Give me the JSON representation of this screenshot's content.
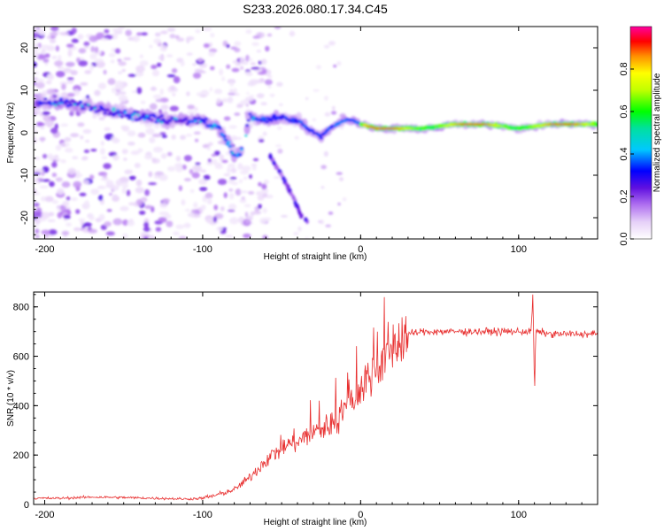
{
  "title": "S233.2026.080.17.34.C45",
  "chart_data": [
    {
      "type": "heatmap",
      "name": "spectrogram",
      "xlabel": "Height of straight line (km)",
      "ylabel": "Frequency (Hz)",
      "xlim": [
        -207,
        150
      ],
      "ylim": [
        -25,
        25
      ],
      "xticks": [
        -200,
        -100,
        0,
        100
      ],
      "yticks": [
        -20,
        -10,
        0,
        10,
        20
      ],
      "ridge": [
        [
          -200,
          7
        ],
        [
          -185,
          7
        ],
        [
          -170,
          6
        ],
        [
          -155,
          5
        ],
        [
          -140,
          4
        ],
        [
          -125,
          3
        ],
        [
          -110,
          3
        ],
        [
          -100,
          3
        ],
        [
          -90,
          1
        ],
        [
          -85,
          -2
        ],
        [
          -80,
          -5
        ],
        [
          -76,
          -5
        ],
        [
          -70,
          4
        ],
        [
          -65,
          3
        ],
        [
          -60,
          3
        ],
        [
          -50,
          4
        ],
        [
          -45,
          3
        ],
        [
          -40,
          3
        ],
        [
          -30,
          0
        ],
        [
          -25,
          -1
        ],
        [
          -20,
          1
        ],
        [
          -15,
          2
        ],
        [
          -10,
          3
        ],
        [
          -5,
          3
        ],
        [
          0,
          2
        ],
        [
          10,
          1
        ],
        [
          20,
          1
        ],
        [
          40,
          1
        ],
        [
          60,
          2
        ],
        [
          80,
          2
        ],
        [
          100,
          1
        ],
        [
          120,
          2
        ],
        [
          140,
          2
        ],
        [
          150,
          2
        ]
      ],
      "branch": [
        [
          -58,
          -5
        ],
        [
          -50,
          -10
        ],
        [
          -43,
          -15
        ],
        [
          -37,
          -20
        ],
        [
          -33,
          -21
        ]
      ],
      "colorbar": {
        "label": "Normalized spectral amplitude",
        "ticks": [
          "0.0",
          "0.2",
          "0.4",
          "0.6",
          "0.8"
        ],
        "range": [
          0,
          1
        ]
      }
    },
    {
      "type": "line",
      "name": "snr",
      "xlabel": "Height of straight line (km)",
      "ylabel": "SNR (10 * v/v)",
      "xlim": [
        -207,
        150
      ],
      "ylim": [
        0,
        860
      ],
      "xticks": [
        -200,
        -100,
        0,
        100
      ],
      "yticks": [
        0,
        200,
        400,
        600,
        800
      ],
      "color": "#e83030",
      "series": [
        {
          "name": "SNR",
          "x": [
            -207,
            -190,
            -170,
            -150,
            -130,
            -110,
            -100,
            -90,
            -80,
            -70,
            -60,
            -50,
            -40,
            -30,
            -20,
            -10,
            0,
            10,
            20,
            30,
            40,
            60,
            80,
            100,
            108,
            109,
            110,
            111,
            120,
            140,
            150
          ],
          "values": [
            25,
            25,
            30,
            28,
            25,
            22,
            25,
            40,
            60,
            110,
            180,
            230,
            260,
            290,
            320,
            380,
            470,
            560,
            640,
            690,
            700,
            700,
            700,
            700,
            700,
            850,
            480,
            700,
            690,
            690,
            690
          ]
        }
      ]
    }
  ]
}
